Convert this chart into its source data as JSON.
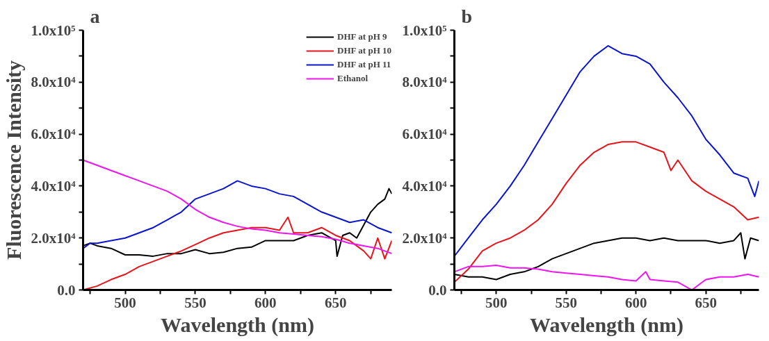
{
  "chart_data": [
    {
      "type": "line",
      "title": "a",
      "xlabel": "Wavelength (nm)",
      "ylabel": "Fluorescence Intensity",
      "xlim": [
        470,
        690
      ],
      "ylim": [
        0,
        100000
      ],
      "xticks": [
        {
          "value": 475,
          "label": null
        },
        500,
        {
          "value": 525,
          "label": null
        },
        550,
        {
          "value": 575,
          "label": null
        },
        600,
        {
          "value": 625,
          "label": null
        },
        650,
        {
          "value": 675,
          "label": null
        }
      ],
      "yticks": [
        {
          "value": 0,
          "label": "0.0"
        },
        {
          "value": 10000,
          "label": null
        },
        {
          "value": 20000,
          "label": "2.0x10⁴"
        },
        {
          "value": 30000,
          "label": null
        },
        {
          "value": 40000,
          "label": "4.0x10⁴"
        },
        {
          "value": 50000,
          "label": null
        },
        {
          "value": 60000,
          "label": "6.0x10⁴"
        },
        {
          "value": 70000,
          "label": null
        },
        {
          "value": 80000,
          "label": "8.0x10⁴"
        },
        {
          "value": 90000,
          "label": null
        },
        {
          "value": 100000,
          "label": "1.0x10⁵"
        }
      ],
      "grid": false,
      "legend": "top right",
      "line_style": "solid",
      "marker": "none",
      "series": [
        {
          "name": "DHF at pH 9",
          "color": "#000000",
          "x": [
            470,
            475,
            480,
            490,
            500,
            510,
            520,
            530,
            540,
            550,
            560,
            570,
            580,
            590,
            600,
            610,
            620,
            630,
            640,
            650,
            651,
            655,
            660,
            665,
            670,
            675,
            680,
            685,
            688,
            690
          ],
          "values": [
            17000,
            18000,
            17000,
            16000,
            13500,
            13500,
            13000,
            14000,
            14000,
            15500,
            14000,
            14500,
            16000,
            16500,
            19000,
            19000,
            19000,
            21000,
            22000,
            19000,
            13000,
            21000,
            22000,
            20000,
            25000,
            30000,
            33000,
            35000,
            39000,
            37000
          ]
        },
        {
          "name": "DHF at pH 10",
          "color": "#e8141c",
          "x": [
            470,
            480,
            490,
            500,
            510,
            520,
            530,
            540,
            550,
            560,
            570,
            580,
            590,
            600,
            610,
            616,
            620,
            630,
            640,
            650,
            660,
            670,
            675,
            680,
            685,
            690
          ],
          "values": [
            0,
            1500,
            4000,
            6000,
            9000,
            11000,
            13000,
            15000,
            17500,
            20000,
            22000,
            23000,
            24000,
            24000,
            23000,
            28000,
            22000,
            22000,
            24000,
            21000,
            19000,
            15000,
            12000,
            20000,
            12000,
            19000
          ]
        },
        {
          "name": "DHF at pH 11",
          "color": "#0a14d0",
          "x": [
            470,
            475,
            480,
            490,
            500,
            510,
            520,
            530,
            540,
            550,
            560,
            570,
            580,
            590,
            600,
            610,
            620,
            630,
            640,
            650,
            660,
            670,
            680,
            690
          ],
          "values": [
            16000,
            18000,
            18000,
            19000,
            20000,
            22000,
            24000,
            27000,
            30000,
            35000,
            37000,
            39000,
            42000,
            40000,
            39000,
            37000,
            36000,
            33000,
            30000,
            28000,
            26000,
            27000,
            24000,
            22000
          ]
        },
        {
          "name": "Ethanol",
          "color": "#ee14ee",
          "x": [
            470,
            480,
            490,
            500,
            510,
            520,
            530,
            540,
            550,
            560,
            570,
            580,
            590,
            600,
            610,
            620,
            630,
            640,
            650,
            660,
            670,
            680,
            690
          ],
          "values": [
            50000,
            48000,
            46000,
            44000,
            42000,
            40000,
            38000,
            35000,
            31000,
            28000,
            26000,
            24500,
            23500,
            23000,
            22000,
            21500,
            21000,
            20500,
            19500,
            18000,
            17000,
            16000,
            14000
          ]
        }
      ]
    },
    {
      "type": "line",
      "title": "b",
      "xlabel": "Wavelength (nm)",
      "xlim": [
        470,
        688
      ],
      "ylim": [
        0,
        100000
      ],
      "xticks": [
        {
          "value": 475,
          "label": null
        },
        500,
        {
          "value": 525,
          "label": null
        },
        550,
        {
          "value": 575,
          "label": null
        },
        600,
        {
          "value": 625,
          "label": null
        },
        650,
        {
          "value": 675,
          "label": null
        }
      ],
      "yticks": [
        {
          "value": 0,
          "label": "0.0"
        },
        {
          "value": 10000,
          "label": null
        },
        {
          "value": 20000,
          "label": "2.0x10⁴"
        },
        {
          "value": 30000,
          "label": null
        },
        {
          "value": 40000,
          "label": "4.0x10⁴"
        },
        {
          "value": 50000,
          "label": null
        },
        {
          "value": 60000,
          "label": "6.0x10⁴"
        },
        {
          "value": 70000,
          "label": null
        },
        {
          "value": 80000,
          "label": "8.0x10⁴"
        },
        {
          "value": 90000,
          "label": null
        },
        {
          "value": 100000,
          "label": "1.0x10⁵"
        }
      ],
      "grid": false,
      "line_style": "solid",
      "marker": "none",
      "series": [
        {
          "color": "#000000",
          "x": [
            470,
            480,
            490,
            500,
            510,
            520,
            530,
            540,
            550,
            560,
            570,
            580,
            590,
            600,
            610,
            620,
            630,
            640,
            650,
            660,
            670,
            675,
            678,
            682,
            688
          ],
          "values": [
            6000,
            5000,
            5000,
            4000,
            6000,
            7000,
            9000,
            12000,
            14000,
            16000,
            18000,
            19000,
            20000,
            20000,
            19000,
            20000,
            19000,
            19000,
            19000,
            18000,
            19000,
            22000,
            12000,
            20000,
            19000
          ]
        },
        {
          "color": "#e8141c",
          "x": [
            470,
            480,
            490,
            500,
            510,
            520,
            530,
            540,
            550,
            560,
            570,
            580,
            590,
            600,
            610,
            620,
            625,
            630,
            640,
            650,
            660,
            670,
            680,
            688
          ],
          "values": [
            3000,
            8000,
            15000,
            18000,
            20000,
            23000,
            27000,
            33000,
            41000,
            48000,
            53000,
            56000,
            57000,
            57000,
            55000,
            53000,
            46000,
            50000,
            42000,
            38000,
            35000,
            32000,
            27000,
            28000
          ]
        },
        {
          "color": "#0a14d0",
          "x": [
            470,
            480,
            490,
            500,
            510,
            520,
            530,
            540,
            550,
            560,
            570,
            580,
            590,
            600,
            610,
            620,
            630,
            640,
            650,
            660,
            670,
            680,
            685,
            688
          ],
          "values": [
            13000,
            20000,
            27000,
            33000,
            40000,
            48000,
            57000,
            66000,
            75000,
            84000,
            90000,
            94000,
            91000,
            90000,
            87000,
            80000,
            74000,
            67000,
            58000,
            52000,
            45000,
            43000,
            36000,
            42000
          ]
        },
        {
          "color": "#ee14ee",
          "x": [
            470,
            480,
            490,
            500,
            510,
            520,
            530,
            540,
            550,
            560,
            570,
            580,
            590,
            600,
            607,
            610,
            620,
            630,
            640,
            650,
            660,
            670,
            680,
            688
          ],
          "values": [
            7000,
            9000,
            9000,
            9500,
            8500,
            8500,
            8000,
            7000,
            6500,
            6000,
            5500,
            5000,
            4000,
            3500,
            7000,
            4000,
            3500,
            3000,
            0,
            4000,
            5000,
            5000,
            6000,
            5000
          ]
        }
      ]
    }
  ]
}
